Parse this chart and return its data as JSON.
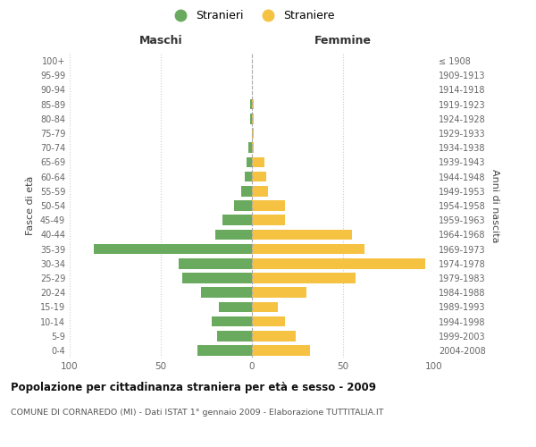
{
  "age_groups": [
    "0-4",
    "5-9",
    "10-14",
    "15-19",
    "20-24",
    "25-29",
    "30-34",
    "35-39",
    "40-44",
    "45-49",
    "50-54",
    "55-59",
    "60-64",
    "65-69",
    "70-74",
    "75-79",
    "80-84",
    "85-89",
    "90-94",
    "95-99",
    "100+"
  ],
  "birth_years": [
    "2004-2008",
    "1999-2003",
    "1994-1998",
    "1989-1993",
    "1984-1988",
    "1979-1983",
    "1974-1978",
    "1969-1973",
    "1964-1968",
    "1959-1963",
    "1954-1958",
    "1949-1953",
    "1944-1948",
    "1939-1943",
    "1934-1938",
    "1929-1933",
    "1924-1928",
    "1919-1923",
    "1914-1918",
    "1909-1913",
    "≤ 1908"
  ],
  "maschi": [
    30,
    19,
    22,
    18,
    28,
    38,
    40,
    87,
    20,
    16,
    10,
    6,
    4,
    3,
    2,
    0,
    1,
    1,
    0,
    0,
    0
  ],
  "femmine": [
    32,
    24,
    18,
    14,
    30,
    57,
    95,
    62,
    55,
    18,
    18,
    9,
    8,
    7,
    1,
    1,
    1,
    1,
    0,
    0,
    0
  ],
  "maschi_color": "#6aaa5e",
  "femmine_color": "#f5c242",
  "background_color": "#ffffff",
  "grid_color": "#cccccc",
  "title": "Popolazione per cittadinanza straniera per età e sesso - 2009",
  "subtitle": "COMUNE DI CORNAREDO (MI) - Dati ISTAT 1° gennaio 2009 - Elaborazione TUTTITALIA.IT",
  "ylabel_left": "Fasce di età",
  "ylabel_right": "Anni di nascita",
  "xlabel_maschi": "Maschi",
  "xlabel_femmine": "Femmine",
  "legend_maschi": "Stranieri",
  "legend_femmine": "Straniere",
  "xlim": 100
}
